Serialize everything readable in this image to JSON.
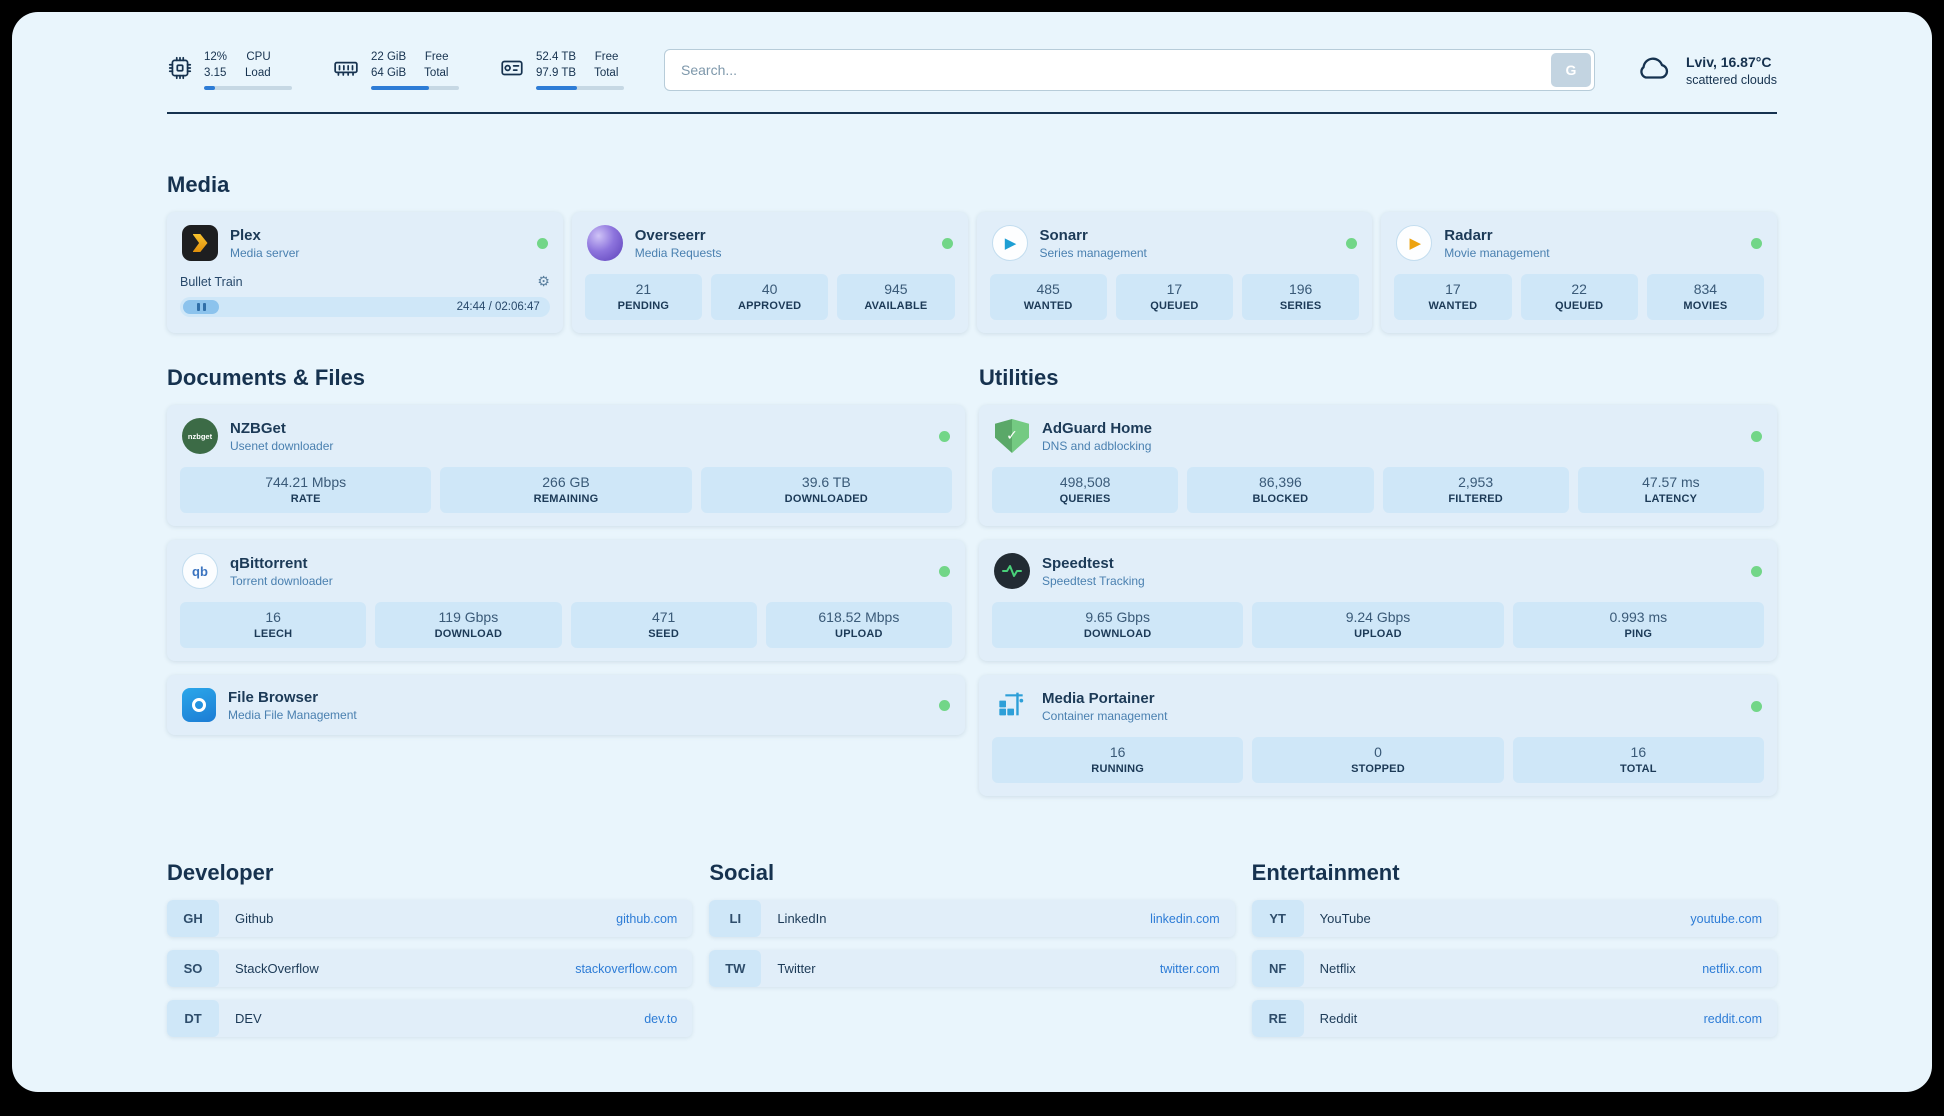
{
  "colors": {
    "page_bg": "#e9f5fc",
    "card_bg": "#e1eef9",
    "stat_bg": "#cfe7f8",
    "text_dark": "#16324f",
    "subtitle_blue": "#4a80b0",
    "link_blue": "#2d7cd6",
    "status_green": "#72d688",
    "accent_bar": "#2d7cd6"
  },
  "icons": {
    "cpu": "chip-outline",
    "memory": "ram-outline",
    "disk": "hdd-outline",
    "weather": "cloud-outline",
    "settings_glyph": "⚙",
    "sonarr_glyph": "▶",
    "radarr_glyph": "▶",
    "qbittorrent_text": "qb",
    "nzbget_text": "nzbget",
    "adguard_check": "✓"
  },
  "topbar": {
    "cpu": {
      "value_top": "12%",
      "value_bottom": "3.15",
      "label_top": "CPU",
      "label_bottom": "Load",
      "bar_percent": 12
    },
    "memory": {
      "value_top": "22 GiB",
      "value_bottom": "64 GiB",
      "label_top": "Free",
      "label_bottom": "Total",
      "bar_percent": 66
    },
    "disk": {
      "value_top": "52.4 TB",
      "value_bottom": "97.9 TB",
      "label_top": "Free",
      "label_bottom": "Total",
      "bar_percent": 47
    },
    "search": {
      "placeholder": "Search...",
      "button_label": "G"
    },
    "weather": {
      "location": "Lviv, 16.87°C",
      "condition": "scattered clouds"
    }
  },
  "sections": {
    "media": {
      "title": "Media",
      "cards": [
        {
          "name": "Plex",
          "subtitle": "Media server",
          "player": {
            "title": "Bullet Train",
            "time": "24:44 / 02:06:47"
          }
        },
        {
          "name": "Overseerr",
          "subtitle": "Media Requests",
          "stats": [
            {
              "value": "21",
              "label": "PENDING"
            },
            {
              "value": "40",
              "label": "APPROVED"
            },
            {
              "value": "945",
              "label": "AVAILABLE"
            }
          ]
        },
        {
          "name": "Sonarr",
          "subtitle": "Series management",
          "stats": [
            {
              "value": "485",
              "label": "WANTED"
            },
            {
              "value": "17",
              "label": "QUEUED"
            },
            {
              "value": "196",
              "label": "SERIES"
            }
          ]
        },
        {
          "name": "Radarr",
          "subtitle": "Movie management",
          "stats": [
            {
              "value": "17",
              "label": "WANTED"
            },
            {
              "value": "22",
              "label": "QUEUED"
            },
            {
              "value": "834",
              "label": "MOVIES"
            }
          ]
        }
      ]
    },
    "documents": {
      "title": "Documents & Files",
      "cards": [
        {
          "name": "NZBGet",
          "subtitle": "Usenet downloader",
          "stats": [
            {
              "value": "744.21 Mbps",
              "label": "RATE"
            },
            {
              "value": "266 GB",
              "label": "REMAINING"
            },
            {
              "value": "39.6 TB",
              "label": "DOWNLOADED"
            }
          ]
        },
        {
          "name": "qBittorrent",
          "subtitle": "Torrent downloader",
          "stats": [
            {
              "value": "16",
              "label": "LEECH"
            },
            {
              "value": "119 Gbps",
              "label": "DOWNLOAD"
            },
            {
              "value": "471",
              "label": "SEED"
            },
            {
              "value": "618.52 Mbps",
              "label": "UPLOAD"
            }
          ]
        },
        {
          "name": "File Browser",
          "subtitle": "Media File Management",
          "stats": []
        }
      ]
    },
    "utilities": {
      "title": "Utilities",
      "cards": [
        {
          "name": "AdGuard Home",
          "subtitle": "DNS and adblocking",
          "stats": [
            {
              "value": "498,508",
              "label": "QUERIES"
            },
            {
              "value": "86,396",
              "label": "BLOCKED"
            },
            {
              "value": "2,953",
              "label": "FILTERED"
            },
            {
              "value": "47.57 ms",
              "label": "LATENCY"
            }
          ]
        },
        {
          "name": "Speedtest",
          "subtitle": "Speedtest Tracking",
          "stats": [
            {
              "value": "9.65 Gbps",
              "label": "DOWNLOAD"
            },
            {
              "value": "9.24 Gbps",
              "label": "UPLOAD"
            },
            {
              "value": "0.993 ms",
              "label": "PING"
            }
          ]
        },
        {
          "name": "Media Portainer",
          "subtitle": "Container management",
          "stats": [
            {
              "value": "16",
              "label": "RUNNING"
            },
            {
              "value": "0",
              "label": "STOPPED"
            },
            {
              "value": "16",
              "label": "TOTAL"
            }
          ]
        }
      ]
    },
    "developer": {
      "title": "Developer",
      "bookmarks": [
        {
          "abbr": "GH",
          "name": "Github",
          "url": "github.com"
        },
        {
          "abbr": "SO",
          "name": "StackOverflow",
          "url": "stackoverflow.com"
        },
        {
          "abbr": "DT",
          "name": "DEV",
          "url": "dev.to"
        }
      ]
    },
    "social": {
      "title": "Social",
      "bookmarks": [
        {
          "abbr": "LI",
          "name": "LinkedIn",
          "url": "linkedin.com"
        },
        {
          "abbr": "TW",
          "name": "Twitter",
          "url": "twitter.com"
        }
      ]
    },
    "entertainment": {
      "title": "Entertainment",
      "bookmarks": [
        {
          "abbr": "YT",
          "name": "YouTube",
          "url": "youtube.com"
        },
        {
          "abbr": "NF",
          "name": "Netflix",
          "url": "netflix.com"
        },
        {
          "abbr": "RE",
          "name": "Reddit",
          "url": "reddit.com"
        }
      ]
    }
  }
}
